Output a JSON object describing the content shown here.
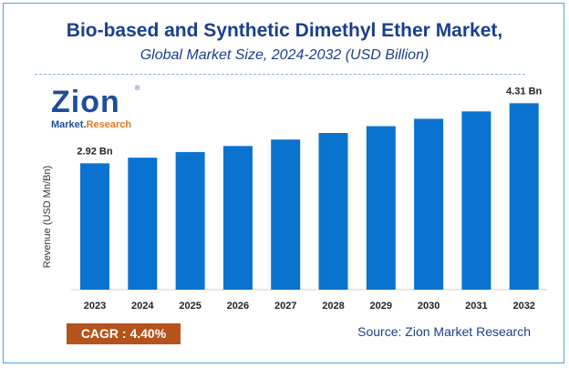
{
  "header": {
    "title": "Bio-based and Synthetic Dimethyl Ether Market,",
    "subtitle": "Global Market Size, 2024-2032 (USD Billion)"
  },
  "logo": {
    "name": "Zion",
    "tagline_part1": "Market.",
    "tagline_part2": "Research",
    "registered": "®"
  },
  "chart_data": {
    "type": "bar",
    "categories": [
      "2023",
      "2024",
      "2025",
      "2026",
      "2027",
      "2028",
      "2029",
      "2030",
      "2031",
      "2032"
    ],
    "values": [
      2.92,
      3.05,
      3.18,
      3.32,
      3.47,
      3.62,
      3.78,
      3.95,
      4.12,
      4.31
    ],
    "data_labels": [
      {
        "index": 0,
        "text": "2.92 Bn"
      },
      {
        "index": 9,
        "text": "4.31 Bn"
      }
    ],
    "title": "Bio-based and Synthetic Dimethyl Ether Market,",
    "subtitle": "Global Market Size, 2024-2032 (USD Billion)",
    "xlabel": "",
    "ylabel": "Revenue (USD Mn/Bn)",
    "ylim": [
      0,
      4.8
    ],
    "grid": false,
    "bar_color": "#0a73cf"
  },
  "footer": {
    "cagr_label": "CAGR :  4.40%",
    "source": "Source: Zion Market Research",
    "cagr_color": "#b5531d"
  }
}
